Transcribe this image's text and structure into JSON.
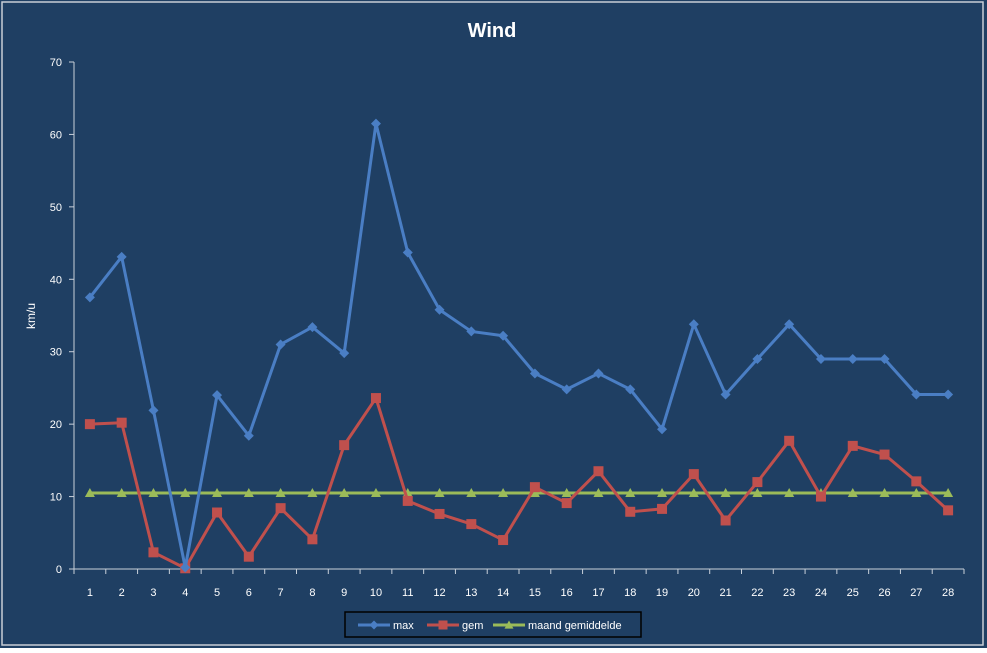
{
  "colors": {
    "background": "#1f3f63",
    "frame": "#c8ced6",
    "axis": "#c8d0da",
    "text": "#ffffff",
    "legend_border": "#000000"
  },
  "chart_data": {
    "type": "line",
    "title": "Wind",
    "xlabel": "",
    "ylabel": "km/u",
    "ylim": [
      0,
      70
    ],
    "yticks": [
      0,
      10,
      20,
      30,
      40,
      50,
      60,
      70
    ],
    "grid": false,
    "legend_position": "bottom",
    "categories": [
      "1",
      "2",
      "3",
      "4",
      "5",
      "6",
      "7",
      "8",
      "9",
      "10",
      "11",
      "12",
      "13",
      "14",
      "15",
      "16",
      "17",
      "18",
      "19",
      "20",
      "21",
      "22",
      "23",
      "24",
      "25",
      "26",
      "27",
      "28"
    ],
    "series": [
      {
        "name": "max",
        "color": "#4a7ec4",
        "marker": "diamond",
        "values": [
          37.5,
          43.1,
          21.9,
          0.2,
          24.0,
          18.4,
          31.0,
          33.4,
          29.8,
          61.5,
          43.7,
          35.8,
          32.8,
          32.2,
          27.0,
          24.8,
          27.0,
          24.8,
          19.3,
          33.8,
          24.1,
          29.0,
          33.8,
          29.0,
          29.0,
          29.0,
          24.1,
          24.1
        ]
      },
      {
        "name": "gem",
        "color": "#c0504d",
        "marker": "square",
        "values": [
          20.0,
          20.2,
          2.3,
          0.1,
          7.8,
          1.7,
          8.4,
          4.1,
          17.1,
          23.6,
          9.4,
          7.6,
          6.2,
          4.0,
          11.3,
          9.1,
          13.5,
          7.9,
          8.3,
          13.1,
          6.7,
          12.0,
          17.7,
          10.0,
          17.0,
          15.8,
          12.1,
          8.1
        ]
      },
      {
        "name": "maand gemiddelde",
        "color": "#9bbb59",
        "marker": "triangle",
        "values": [
          10.5,
          10.5,
          10.5,
          10.5,
          10.5,
          10.5,
          10.5,
          10.5,
          10.5,
          10.5,
          10.5,
          10.5,
          10.5,
          10.5,
          10.5,
          10.5,
          10.5,
          10.5,
          10.5,
          10.5,
          10.5,
          10.5,
          10.5,
          10.5,
          10.5,
          10.5,
          10.5,
          10.5
        ]
      }
    ]
  }
}
